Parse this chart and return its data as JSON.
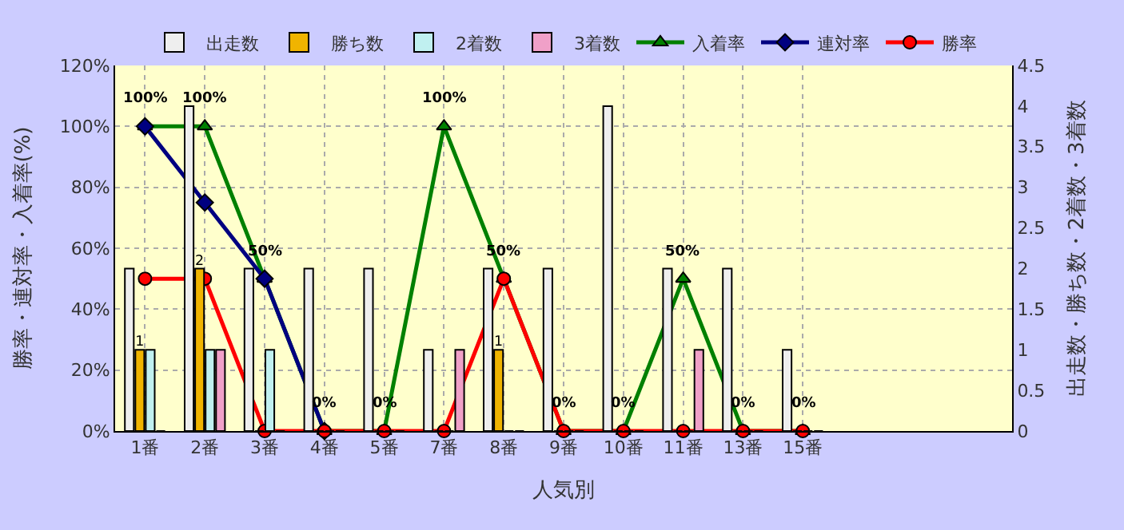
{
  "chart_data": {
    "type": "bar",
    "xlabel": "人気別",
    "ylabel": "勝率・連対率・入着率(%)",
    "y2label": "出走数・勝ち数・2着数・3着数",
    "categories": [
      "1番",
      "2番",
      "3番",
      "4番",
      "5番",
      "7番",
      "8番",
      "9番",
      "10番",
      "11番",
      "13番",
      "15番",
      null,
      null,
      null
    ],
    "series": [
      {
        "name": "出走数",
        "axis": "y2",
        "color": "#eeeeee",
        "values": [
          2,
          4,
          2,
          2,
          2,
          1,
          2,
          2,
          4,
          2,
          2,
          1,
          null,
          null,
          null
        ]
      },
      {
        "name": "勝ち数",
        "axis": "y2",
        "color": "#f0b400",
        "values": [
          1,
          2,
          0,
          0,
          0,
          0,
          1,
          0,
          0,
          0,
          0,
          0,
          null,
          null,
          null
        ],
        "value_labels": [
          "1",
          "2",
          null,
          null,
          null,
          null,
          "1",
          null,
          null,
          null,
          null,
          null,
          null,
          null,
          null
        ]
      },
      {
        "name": "2着数",
        "axis": "y2",
        "color": "#c0f0f0",
        "values": [
          1,
          1,
          1,
          0,
          0,
          0,
          0,
          0,
          0,
          0,
          0,
          0,
          null,
          null,
          null
        ]
      },
      {
        "name": "3着数",
        "axis": "y2",
        "color": "#f0a0c8",
        "values": [
          0,
          1,
          0,
          0,
          0,
          1,
          0,
          0,
          0,
          1,
          0,
          0,
          null,
          null,
          null
        ]
      },
      {
        "name": "入着率",
        "type": "line",
        "color": "#008000",
        "marker": "triangle",
        "values": [
          100,
          100,
          50,
          0,
          0,
          100,
          50,
          0,
          0,
          50,
          0,
          0,
          null,
          null,
          null
        ],
        "value_labels": [
          "100%",
          "100%",
          "50%",
          "0%",
          "0%",
          "100%",
          "50%",
          "0%",
          "0%",
          "50%",
          "0%",
          "0%",
          null,
          null,
          null
        ]
      },
      {
        "name": "連対率",
        "type": "line",
        "color": "#000080",
        "marker": "diamond",
        "values": [
          100,
          75,
          50,
          0,
          null,
          null,
          null,
          null,
          null,
          null,
          null,
          null,
          null,
          null,
          null
        ]
      },
      {
        "name": "勝率",
        "type": "line",
        "color": "#ff0000",
        "marker": "circle",
        "values": [
          50,
          50,
          0,
          0,
          0,
          0,
          50,
          0,
          0,
          0,
          0,
          0,
          null,
          null,
          null
        ]
      }
    ],
    "ylim": [
      0,
      120
    ],
    "yticks": [
      {
        "value": 0,
        "label": "0%"
      },
      {
        "value": 20,
        "label": "20%"
      },
      {
        "value": 40,
        "label": "40%"
      },
      {
        "value": 60,
        "label": "60%"
      },
      {
        "value": 80,
        "label": "80%"
      },
      {
        "value": 100,
        "label": "100%"
      },
      {
        "value": 120,
        "label": "120%"
      }
    ],
    "y2lim": [
      0,
      4.5
    ],
    "y2ticks": [
      0,
      0.5,
      1,
      1.5,
      2,
      2.5,
      3,
      3.5,
      4,
      4.5
    ],
    "grid": true,
    "legend": "top"
  }
}
